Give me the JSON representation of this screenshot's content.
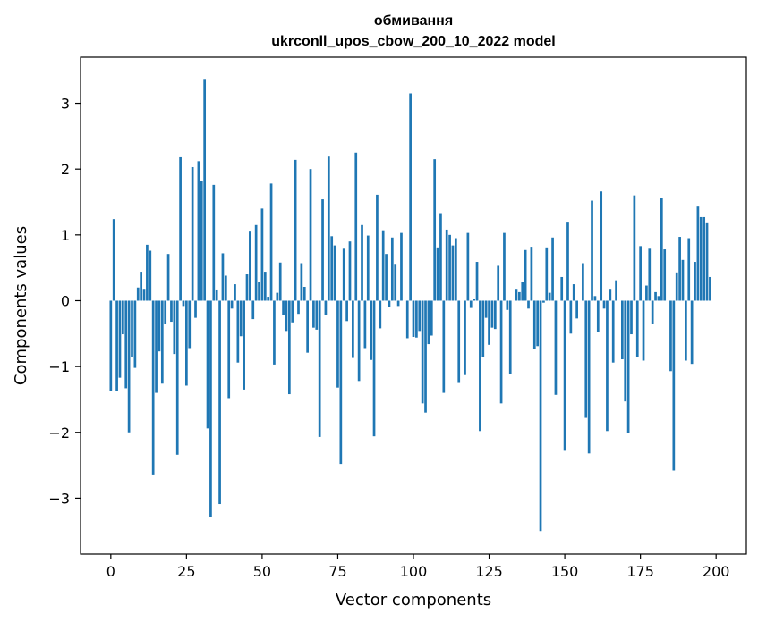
{
  "chart_data": {
    "type": "bar",
    "title": "обмивання",
    "subtitle": "ukrconll_upos_cbow_200_10_2022 model",
    "xlabel": "Vector components",
    "ylabel": "Components values",
    "xlim": [
      -10,
      210
    ],
    "ylim": [
      -3.85,
      3.7
    ],
    "xticks": [
      0,
      25,
      50,
      75,
      100,
      125,
      150,
      175,
      200
    ],
    "yticks": [
      -3,
      -2,
      -1,
      0,
      1,
      2,
      3
    ],
    "bar_color": "#1f77b4",
    "grid": false,
    "legend": "none",
    "x_start": 0,
    "values": [
      -1.37,
      1.24,
      -1.37,
      -1.17,
      -0.51,
      -1.33,
      -2.0,
      -0.86,
      -1.02,
      0.2,
      0.44,
      0.18,
      0.85,
      0.76,
      -2.64,
      -1.4,
      -0.77,
      -1.26,
      -0.35,
      0.71,
      -0.32,
      -0.81,
      -2.34,
      2.18,
      -0.08,
      -1.29,
      -0.72,
      2.03,
      -0.26,
      2.12,
      1.82,
      3.37,
      -1.94,
      -3.28,
      1.76,
      0.17,
      -3.09,
      0.72,
      0.38,
      -1.48,
      -0.12,
      0.25,
      -0.94,
      -0.54,
      -1.35,
      0.4,
      1.05,
      -0.28,
      1.15,
      0.29,
      1.4,
      0.44,
      0.06,
      1.78,
      -0.97,
      0.12,
      0.58,
      -0.22,
      -0.46,
      -1.42,
      -0.33,
      2.14,
      -0.2,
      0.57,
      0.21,
      -0.79,
      2.0,
      -0.41,
      -0.44,
      -2.07,
      1.54,
      -0.22,
      2.19,
      0.98,
      0.84,
      -1.32,
      -2.48,
      0.79,
      -0.31,
      0.9,
      -0.87,
      2.25,
      -1.22,
      1.15,
      -0.72,
      0.99,
      -0.9,
      -2.06,
      1.61,
      -0.42,
      1.07,
      0.71,
      -0.09,
      0.96,
      0.56,
      -0.08,
      1.03,
      0.0,
      -0.57,
      3.15,
      -0.55,
      -0.56,
      -0.46,
      -1.56,
      -1.7,
      -0.66,
      -0.53,
      2.15,
      0.81,
      1.33,
      -1.4,
      1.08,
      1.0,
      0.84,
      0.95,
      -1.25,
      0.0,
      -1.13,
      1.03,
      -0.11,
      0.02,
      0.59,
      -1.98,
      -0.85,
      -0.26,
      -0.67,
      -0.41,
      -0.43,
      0.53,
      -1.56,
      1.03,
      -0.14,
      -1.12,
      0.0,
      0.18,
      0.13,
      0.29,
      0.77,
      -0.12,
      0.82,
      -0.73,
      -0.69,
      -3.5,
      -0.03,
      0.81,
      0.12,
      0.96,
      -1.43,
      0.0,
      0.36,
      -2.28,
      1.2,
      -0.5,
      0.25,
      -0.27,
      0.0,
      0.57,
      -1.78,
      -2.32,
      1.52,
      0.07,
      -0.47,
      1.66,
      -0.12,
      -1.98,
      0.18,
      -0.94,
      0.31,
      0.0,
      -0.89,
      -1.53,
      -2.01,
      -0.51,
      1.6,
      -0.86,
      0.83,
      -0.91,
      0.23,
      0.79,
      -0.35,
      0.13,
      0.07,
      1.56,
      0.78,
      0.0,
      -1.07,
      -2.58,
      0.43,
      0.97,
      0.62,
      -0.91,
      0.95,
      -0.96,
      0.59,
      1.43,
      1.27,
      1.27,
      1.19,
      0.36
    ]
  }
}
